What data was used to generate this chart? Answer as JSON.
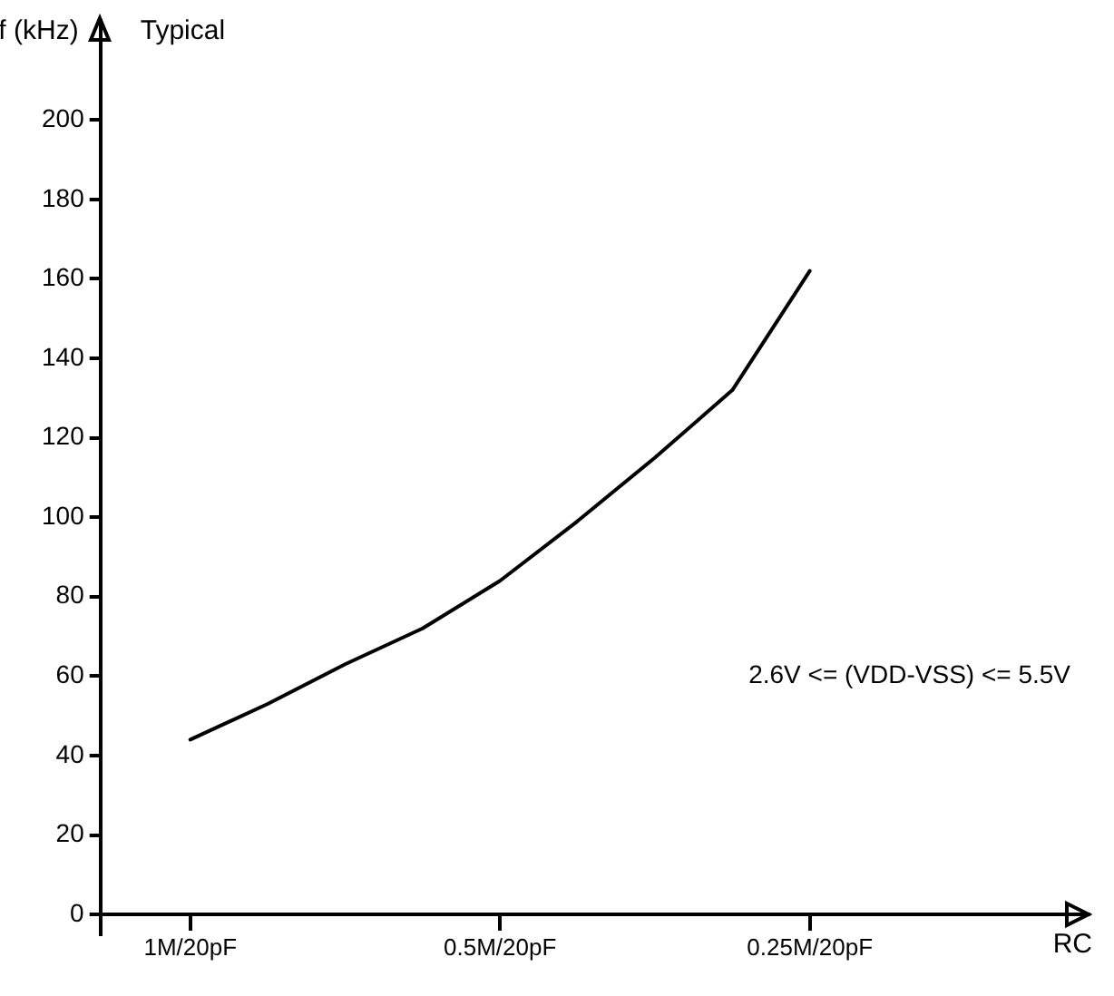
{
  "chart_data": {
    "type": "line",
    "title": "Typical",
    "ylabel": "f (kHz)",
    "annotations": [
      "2.6V <= (VDD-VSS) <= 5.5V",
      "RC"
    ],
    "categories": [
      "1M/20pF",
      null,
      null,
      null,
      "0.5M/20pF",
      null,
      null,
      null,
      "0.25M/20pF"
    ],
    "series": [
      {
        "color": "#000000",
        "values": [
          44,
          53,
          63,
          72,
          84,
          99,
          115,
          132,
          162
        ]
      }
    ],
    "ylim": [
      -5,
      225
    ],
    "yticks": [
      0,
      20,
      40,
      60,
      80,
      100,
      120,
      140,
      160,
      180,
      200
    ],
    "grid": false,
    "legend": false,
    "marker": "none",
    "line_style": "solid"
  }
}
